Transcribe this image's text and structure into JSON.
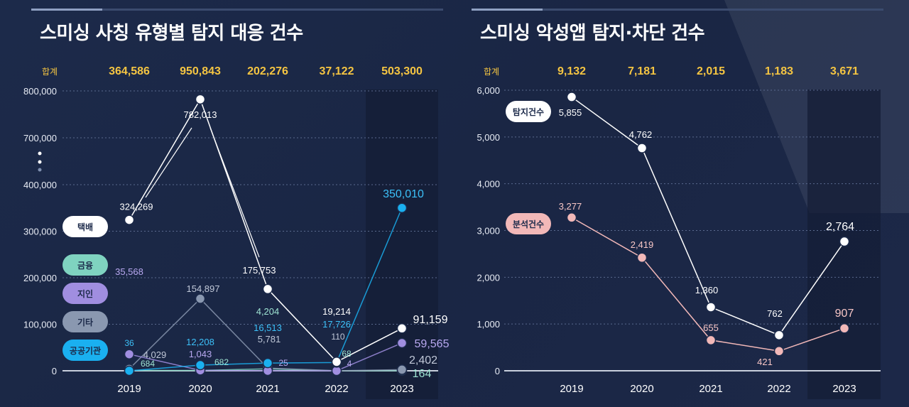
{
  "left": {
    "title": "스미싱 사칭 유형별 탐지 대응 건수",
    "total_label": "합계",
    "totals": [
      "364,586",
      "950,843",
      "202,276",
      "37,122",
      "503,300"
    ],
    "legend": [
      "택배",
      "금융",
      "지인",
      "기타",
      "공공기관"
    ],
    "series_colors": {
      "택배": "#ffffff",
      "금융": "#7fd3c0",
      "지인": "#a08ee0",
      "기타": "#8a98b0",
      "공공기관": "#1ab0f0"
    },
    "y_ticks": [
      "800,000",
      "700,000",
      "400,000",
      "300,000",
      "200,000",
      "100,000",
      "0"
    ]
  },
  "right": {
    "title": "스미싱 악성앱 탐지·차단 건수",
    "total_label": "합계",
    "totals": [
      "9,132",
      "7,181",
      "2,015",
      "1,183",
      "3,671"
    ],
    "legend": [
      "탐지건수",
      "분석건수"
    ],
    "y_ticks": [
      "6,000",
      "5,000",
      "4,000",
      "3,000",
      "2,000",
      "1,000",
      "0"
    ]
  },
  "chart_data": [
    {
      "type": "line",
      "title": "스미싱 사칭 유형별 탐지 대응 건수",
      "categories": [
        "2019",
        "2020",
        "2021",
        "2022",
        "2023"
      ],
      "ylim": [
        0,
        800000
      ],
      "axis_break": "between 400,000 and 700,000",
      "series": [
        {
          "name": "택배",
          "values": [
            324269,
            782013,
            175753,
            19214,
            91159
          ],
          "labels": [
            "324,269",
            "782,013",
            "175,753",
            "19,214",
            "91,159"
          ]
        },
        {
          "name": "금융",
          "values": [
            684,
            682,
            4204,
            68,
            164
          ],
          "labels": [
            "684",
            "682",
            "4,204",
            "68",
            "164"
          ]
        },
        {
          "name": "지인",
          "values": [
            35568,
            1043,
            25,
            4,
            59565
          ],
          "labels": [
            "35,568",
            "1,043",
            "25",
            "4",
            "59,565"
          ]
        },
        {
          "name": "기타",
          "values": [
            4029,
            154897,
            5781,
            110,
            2402
          ],
          "labels": [
            "4,029",
            "154,897",
            "5,781",
            "110",
            "2,402"
          ]
        },
        {
          "name": "공공기관",
          "values": [
            36,
            12208,
            16513,
            17726,
            350010
          ],
          "labels": [
            "36",
            "12,208",
            "16,513",
            "17,726",
            "350,010"
          ]
        }
      ]
    },
    {
      "type": "line",
      "title": "스미싱 악성앱 탐지·차단 건수",
      "categories": [
        "2019",
        "2020",
        "2021",
        "2022",
        "2023"
      ],
      "ylim": [
        0,
        6000
      ],
      "series": [
        {
          "name": "탐지건수",
          "values": [
            5855,
            4762,
            1360,
            762,
            2764
          ],
          "labels": [
            "5,855",
            "4,762",
            "1,360",
            "762",
            "2,764"
          ]
        },
        {
          "name": "분석건수",
          "values": [
            3277,
            2419,
            655,
            421,
            907
          ],
          "labels": [
            "3,277",
            "2,419",
            "655",
            "421",
            "907"
          ]
        }
      ]
    }
  ]
}
